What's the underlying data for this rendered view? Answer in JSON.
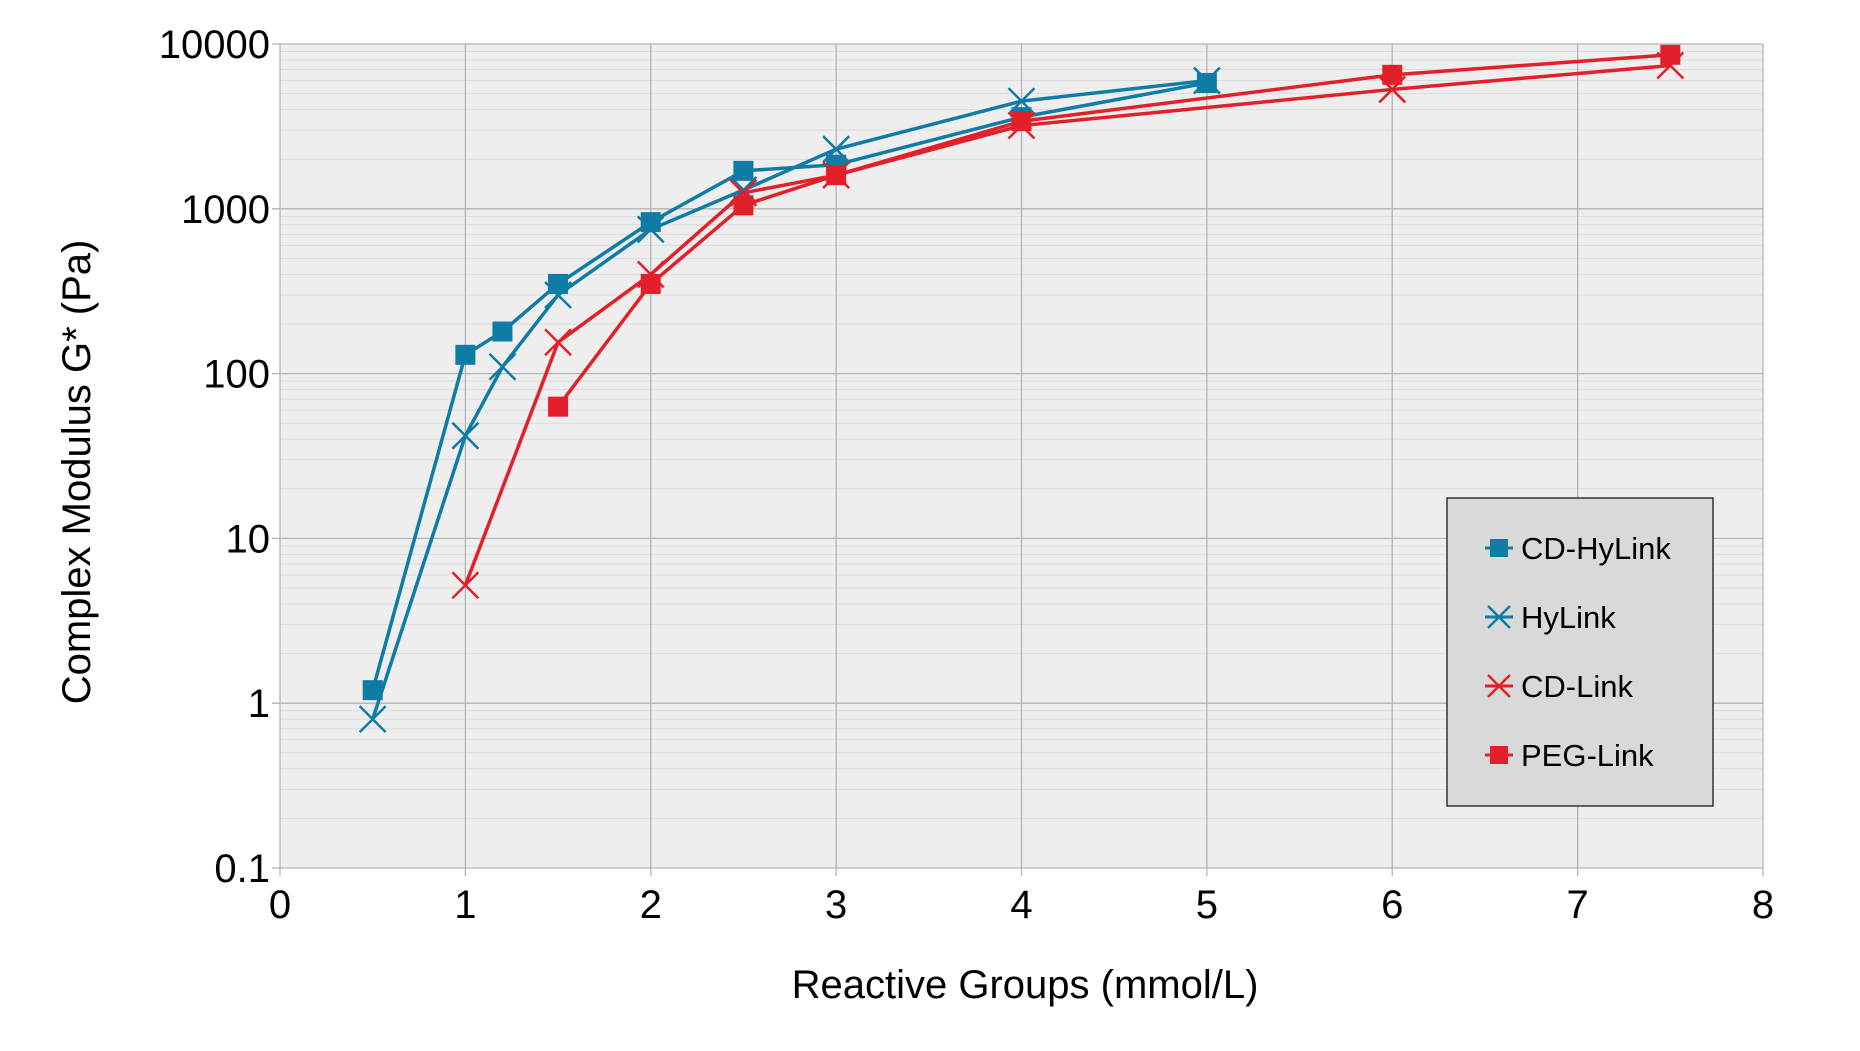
{
  "chart_data": {
    "type": "line",
    "title": "",
    "xlabel": "Reactive Groups (mmol/L)",
    "ylabel": "Complex Modulus G* (Pa)",
    "xlim": [
      0,
      8
    ],
    "ylim": [
      0.1,
      10000
    ],
    "yscale": "log",
    "grid": true,
    "legend_position": "right",
    "x_ticks": [
      "0",
      "1",
      "2",
      "3",
      "4",
      "5",
      "6",
      "7",
      "8"
    ],
    "y_ticks": [
      "0.1",
      "1",
      "10",
      "100",
      "1000",
      "10000"
    ],
    "series": [
      {
        "name": "CD-HyLink",
        "color": "#0f7ca6",
        "marker": "square",
        "x": [
          0.5,
          1,
          1.2,
          1.5,
          2,
          2.5,
          3,
          4,
          5
        ],
        "y": [
          1.2,
          130,
          180,
          350,
          830,
          1700,
          1850,
          3600,
          5800
        ]
      },
      {
        "name": "HyLink",
        "color": "#0f7ca6",
        "marker": "x",
        "x": [
          0.5,
          1,
          1.2,
          1.5,
          2,
          2.5,
          3,
          4,
          5
        ],
        "y": [
          0.8,
          42,
          110,
          300,
          750,
          1300,
          2300,
          4500,
          6000
        ]
      },
      {
        "name": "CD-Link",
        "color": "#e3202a",
        "marker": "x",
        "x": [
          1,
          1.5,
          2,
          2.5,
          3,
          4,
          6,
          7.5
        ],
        "y": [
          5.2,
          155,
          400,
          1250,
          1600,
          3200,
          5300,
          7400
        ]
      },
      {
        "name": "PEG-Link",
        "color": "#e3202a",
        "marker": "square",
        "x": [
          1.5,
          2,
          2.5,
          3,
          4,
          6,
          7.5
        ],
        "y": [
          63,
          350,
          1050,
          1600,
          3400,
          6500,
          8600
        ]
      }
    ]
  }
}
